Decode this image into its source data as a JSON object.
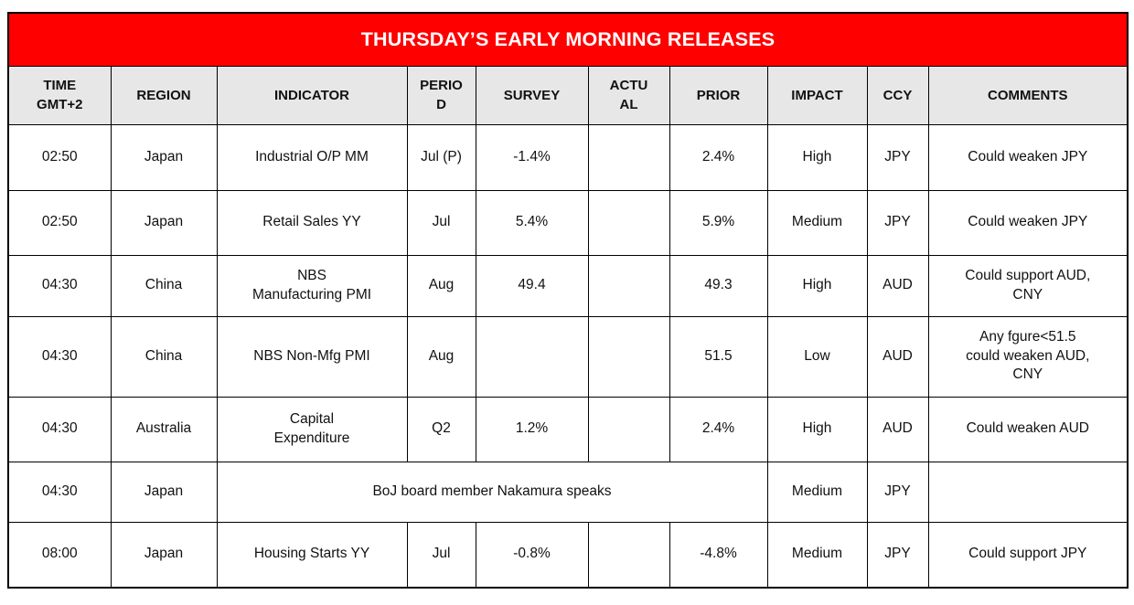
{
  "title": "THURSDAY’S EARLY MORNING RELEASES",
  "colors": {
    "banner_bg": "#FE0000",
    "banner_text": "#FFFFFF",
    "header_bg": "#E8E7E7",
    "grid_border": "#000000",
    "body_text": "#111111"
  },
  "table": {
    "columns": [
      {
        "key": "time",
        "label": "TIME\nGMT+2"
      },
      {
        "key": "region",
        "label": "REGION"
      },
      {
        "key": "indicator",
        "label": "INDICATOR"
      },
      {
        "key": "period",
        "label": "PERIO\nD"
      },
      {
        "key": "survey",
        "label": "SURVEY"
      },
      {
        "key": "actual",
        "label": "ACTU\nAL"
      },
      {
        "key": "prior",
        "label": "PRIOR"
      },
      {
        "key": "impact",
        "label": "IMPACT"
      },
      {
        "key": "ccy",
        "label": "CCY"
      },
      {
        "key": "comments",
        "label": "COMMENTS"
      }
    ],
    "rows": [
      {
        "time": "02:50",
        "region": "Japan",
        "indicator": "Industrial O/P MM",
        "period": "Jul (P)",
        "survey": "-1.4%",
        "actual": "",
        "prior": "2.4%",
        "impact": "High",
        "ccy": "JPY",
        "comments": "Could weaken JPY"
      },
      {
        "time": "02:50",
        "region": "Japan",
        "indicator": "Retail Sales YY",
        "period": "Jul",
        "survey": "5.4%",
        "actual": "",
        "prior": "5.9%",
        "impact": "Medium",
        "ccy": "JPY",
        "comments": "Could weaken JPY"
      },
      {
        "time": "04:30",
        "region": "China",
        "indicator": "NBS\nManufacturing PMI",
        "period": "Aug",
        "survey": "49.4",
        "actual": "",
        "prior": "49.3",
        "impact": "High",
        "ccy": "AUD",
        "comments": "Could support AUD,\nCNY"
      },
      {
        "time": "04:30",
        "region": "China",
        "indicator": "NBS Non-Mfg PMI",
        "period": "Aug",
        "survey": "",
        "actual": "",
        "prior": "51.5",
        "impact": "Low",
        "ccy": "AUD",
        "comments": "Any fgure<51.5\ncould weaken AUD,\nCNY"
      },
      {
        "time": "04:30",
        "region": "Australia",
        "indicator": "Capital\nExpenditure",
        "period": "Q2",
        "survey": "1.2%",
        "actual": "",
        "prior": "2.4%",
        "impact": "High",
        "ccy": "AUD",
        "comments": "Could weaken AUD"
      },
      {
        "time": "04:30",
        "region": "Japan",
        "merged": "BoJ board member Nakamura speaks",
        "impact": "Medium",
        "ccy": "JPY",
        "comments": ""
      },
      {
        "time": "08:00",
        "region": "Japan",
        "indicator": "Housing Starts YY",
        "period": "Jul",
        "survey": "-0.8%",
        "actual": "",
        "prior": "-4.8%",
        "impact": "Medium",
        "ccy": "JPY",
        "comments": "Could support JPY"
      }
    ]
  }
}
